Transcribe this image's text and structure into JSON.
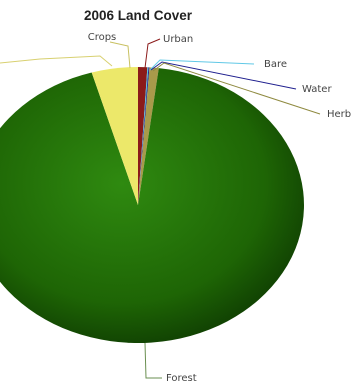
{
  "chart_data": {
    "type": "pie",
    "title": "2006 Land Cover",
    "slices": [
      {
        "label": "Forest",
        "value": 93.5,
        "color": "#1f6b06"
      },
      {
        "label": "Crops",
        "value": 4.5,
        "color": "#ece86a"
      },
      {
        "label": "Urban",
        "value": 0.9,
        "color": "#8b1a1a"
      },
      {
        "label": "Bare",
        "value": 0.1,
        "color": "#4fc3e0"
      },
      {
        "label": "Water",
        "value": 0.1,
        "color": "#20208f"
      },
      {
        "label": "Herb",
        "value": 0.9,
        "color": "#a89a4a"
      }
    ],
    "legend": "none"
  }
}
